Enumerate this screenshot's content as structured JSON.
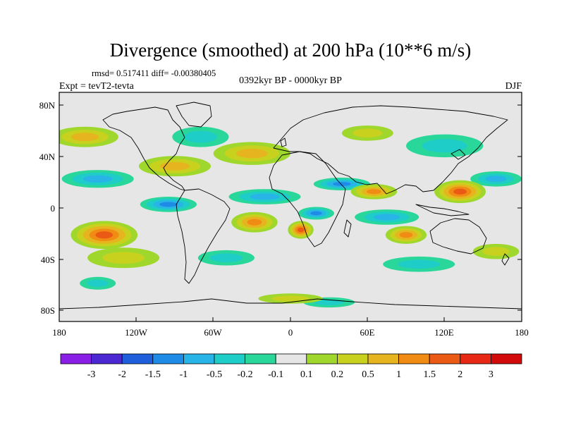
{
  "title": "Divergence (smoothed) at 200 hPa (10**6 m/s)",
  "stats": "rmsd= 0.517411 diff= -0.00380405",
  "experiment": "Expt = tevT2-tevta",
  "period": "0392kyr BP - 0000kyr BP",
  "season": "DJF",
  "chart_data": {
    "type": "heatmap",
    "x_ticks": [
      "180",
      "120W",
      "60W",
      "0",
      "60E",
      "120E",
      "180"
    ],
    "y_ticks": [
      "80N",
      "40N",
      "0",
      "40S",
      "80S"
    ],
    "xlim": [
      -180,
      180
    ],
    "ylim": [
      -90,
      90
    ],
    "colorbar": {
      "labels": [
        "-3",
        "-2",
        "-1.5",
        "-1",
        "-0.5",
        "-0.2",
        "-0.1",
        "0.1",
        "0.2",
        "0.5",
        "1",
        "1.5",
        "2",
        "3"
      ],
      "colors": [
        "#8a1ee6",
        "#4b28d2",
        "#1f5fdc",
        "#1e8ce6",
        "#28b4e6",
        "#1ecdc8",
        "#2ad79b",
        "#e6e6e6",
        "#a0d72d",
        "#c8d21e",
        "#e6b41e",
        "#f08c14",
        "#eb5a14",
        "#e62814",
        "#d20a0a"
      ]
    },
    "features": [
      {
        "kind": "neg",
        "level": 2,
        "lon": -150,
        "lat": 22,
        "rx": 28,
        "ry": 7
      },
      {
        "kind": "neg",
        "level": 2,
        "lon": -20,
        "lat": 8,
        "rx": 28,
        "ry": 6
      },
      {
        "kind": "neg",
        "level": 3,
        "lon": 40,
        "lat": 18,
        "rx": 22,
        "ry": 5
      },
      {
        "kind": "neg",
        "level": 3,
        "lon": -95,
        "lat": 2,
        "rx": 22,
        "ry": 6
      },
      {
        "kind": "neg",
        "level": 3,
        "lon": 20,
        "lat": -5,
        "rx": 14,
        "ry": 5
      },
      {
        "kind": "neg",
        "level": 2,
        "lon": 75,
        "lat": -8,
        "rx": 25,
        "ry": 6
      },
      {
        "kind": "neg",
        "level": 2,
        "lon": 160,
        "lat": 22,
        "rx": 20,
        "ry": 6
      },
      {
        "kind": "neg",
        "level": 1,
        "lon": -70,
        "lat": 55,
        "rx": 22,
        "ry": 8
      },
      {
        "kind": "neg",
        "level": 1,
        "lon": 120,
        "lat": 48,
        "rx": 30,
        "ry": 9
      },
      {
        "kind": "neg",
        "level": 1,
        "lon": -50,
        "lat": -40,
        "rx": 22,
        "ry": 6
      },
      {
        "kind": "neg",
        "level": 1,
        "lon": 100,
        "lat": -45,
        "rx": 28,
        "ry": 6
      },
      {
        "kind": "neg",
        "level": 1,
        "lon": -150,
        "lat": -60,
        "rx": 14,
        "ry": 5
      },
      {
        "kind": "neg",
        "level": 1,
        "lon": 30,
        "lat": -75,
        "rx": 20,
        "ry": 4
      },
      {
        "kind": "pos",
        "level": 4,
        "lon": -145,
        "lat": -22,
        "rx": 26,
        "ry": 11
      },
      {
        "kind": "pos",
        "level": 3,
        "lon": -28,
        "lat": -12,
        "rx": 18,
        "ry": 8
      },
      {
        "kind": "pos",
        "level": 4,
        "lon": 8,
        "lat": -18,
        "rx": 10,
        "ry": 7
      },
      {
        "kind": "pos",
        "level": 3,
        "lon": 90,
        "lat": -22,
        "rx": 16,
        "ry": 7
      },
      {
        "kind": "pos",
        "level": 4,
        "lon": 132,
        "lat": 12,
        "rx": 20,
        "ry": 9
      },
      {
        "kind": "pos",
        "level": 3,
        "lon": 65,
        "lat": 12,
        "rx": 18,
        "ry": 6
      },
      {
        "kind": "pos",
        "level": 2,
        "lon": -90,
        "lat": 32,
        "rx": 28,
        "ry": 8
      },
      {
        "kind": "pos",
        "level": 2,
        "lon": -30,
        "lat": 42,
        "rx": 30,
        "ry": 9
      },
      {
        "kind": "pos",
        "level": 2,
        "lon": -160,
        "lat": 55,
        "rx": 26,
        "ry": 8
      },
      {
        "kind": "pos",
        "level": 1,
        "lon": -130,
        "lat": -40,
        "rx": 28,
        "ry": 8
      },
      {
        "kind": "pos",
        "level": 1,
        "lon": 160,
        "lat": -35,
        "rx": 18,
        "ry": 6
      },
      {
        "kind": "pos",
        "level": 1,
        "lon": 0,
        "lat": -72,
        "rx": 25,
        "ry": 4
      },
      {
        "kind": "pos",
        "level": 1,
        "lon": 60,
        "lat": 58,
        "rx": 20,
        "ry": 6
      }
    ]
  }
}
